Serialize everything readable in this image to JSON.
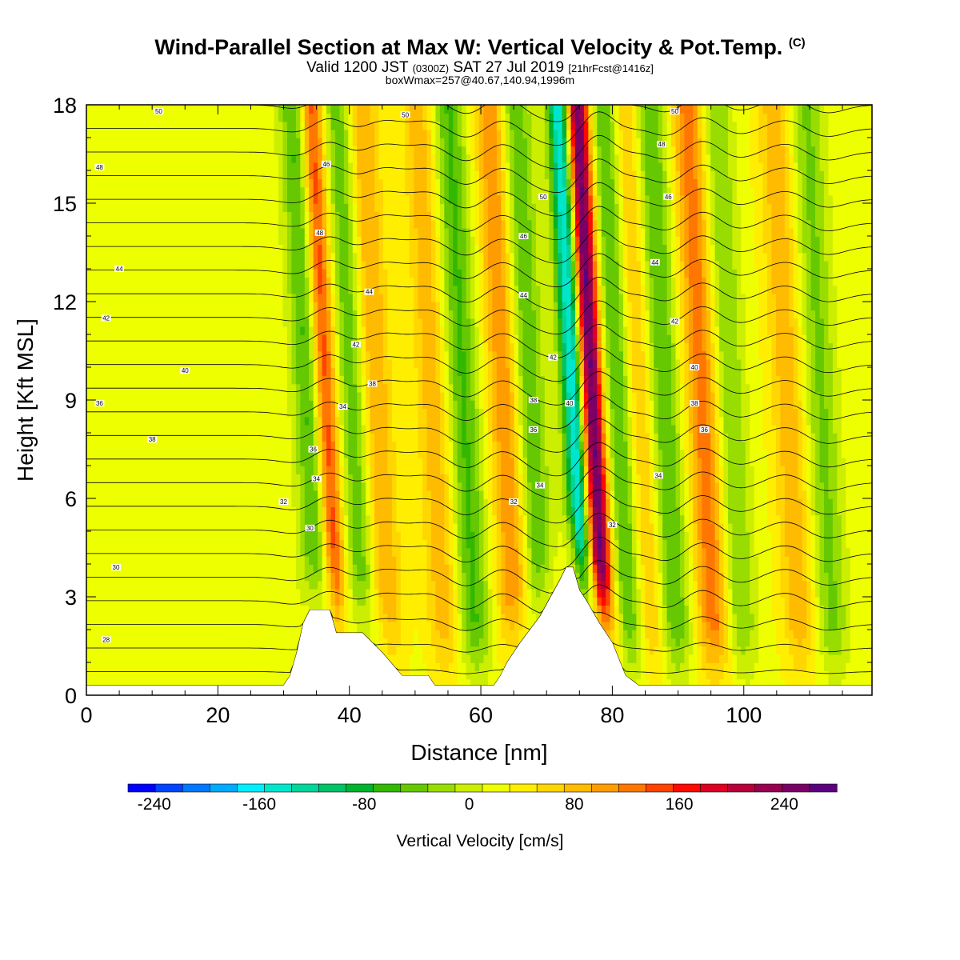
{
  "title": {
    "main": "Wind-Parallel Section at Max W: Vertical Velocity & Pot.Temp.",
    "main_suffix": "(C)",
    "valid_a": "Valid 1200 JST",
    "valid_b": "(0300Z)",
    "valid_c": "SAT 27 Jul 2019",
    "valid_d": "[21hrFcst@1416z]",
    "box": "boxWmax=257@40.67,140.94,1996m"
  },
  "chart_data": {
    "type": "heatmap",
    "xlabel": "Distance [nm]",
    "ylabel": "Height [Kft MSL]",
    "xlim": [
      0,
      119.5
    ],
    "ylim": [
      0,
      18
    ],
    "xticks": [
      0,
      20,
      40,
      60,
      80,
      100
    ],
    "yticks": [
      0,
      3,
      6,
      9,
      12,
      15,
      18
    ],
    "colorbar": {
      "label": "Vertical Velocity [cm/s]",
      "min": -260,
      "max": 280,
      "step": 20,
      "tick_values": [
        -240,
        -160,
        -80,
        0,
        80,
        160,
        240
      ],
      "colors": [
        "#0000ff",
        "#0044ff",
        "#0077ff",
        "#00aaff",
        "#00eeff",
        "#00e6cc",
        "#00d699",
        "#00c266",
        "#00b22e",
        "#33b800",
        "#66c800",
        "#99dd00",
        "#ccee00",
        "#eeff00",
        "#ffee00",
        "#ffd600",
        "#ffbb00",
        "#ff9c00",
        "#ff7700",
        "#ff4400",
        "#ff0a00",
        "#dd0022",
        "#b8003c",
        "#990050",
        "#7a0066",
        "#5c0080"
      ]
    },
    "terrain_kft": [
      [
        0,
        0.3
      ],
      [
        30,
        0.3
      ],
      [
        31,
        0.6
      ],
      [
        32,
        1.3
      ],
      [
        33,
        2.2
      ],
      [
        34,
        2.6
      ],
      [
        37,
        2.6
      ],
      [
        38,
        1.9
      ],
      [
        42,
        1.9
      ],
      [
        45,
        1.3
      ],
      [
        48,
        0.6
      ],
      [
        52,
        0.6
      ],
      [
        53,
        0.3
      ],
      [
        62,
        0.3
      ],
      [
        63,
        0.6
      ],
      [
        64,
        1.0
      ],
      [
        66,
        1.6
      ],
      [
        69,
        2.4
      ],
      [
        72,
        3.5
      ],
      [
        73,
        3.9
      ],
      [
        74,
        3.9
      ],
      [
        75,
        3.2
      ],
      [
        76,
        2.9
      ],
      [
        78,
        2.2
      ],
      [
        80,
        1.6
      ],
      [
        82,
        0.6
      ],
      [
        84,
        0.3
      ],
      [
        119.5,
        0.3
      ]
    ],
    "w_features": [
      {
        "x": 36.5,
        "value": 160
      },
      {
        "x": 34.5,
        "value": -100
      },
      {
        "x": 44.0,
        "value": 80
      },
      {
        "x": 41.0,
        "value": -80
      },
      {
        "x": 53.0,
        "value": 60
      },
      {
        "x": 57.5,
        "value": -80
      },
      {
        "x": 64.0,
        "value": 90
      },
      {
        "x": 67.5,
        "value": -80
      },
      {
        "x": 77.0,
        "value": 257
      },
      {
        "x": 74.5,
        "value": -200
      },
      {
        "x": 81.5,
        "value": -100
      },
      {
        "x": 84.0,
        "value": 80
      },
      {
        "x": 88.0,
        "value": -80
      },
      {
        "x": 94.0,
        "value": 100
      },
      {
        "x": 98.0,
        "value": -60
      },
      {
        "x": 107.0,
        "value": 60
      },
      {
        "x": 112.0,
        "value": -60
      }
    ],
    "theta_contour_labels": [
      {
        "x": 3,
        "y": 1.7,
        "value": 28
      },
      {
        "x": 4.5,
        "y": 3.9,
        "value": 30
      },
      {
        "x": 30,
        "y": 5.9,
        "value": 32
      },
      {
        "x": 34,
        "y": 5.1,
        "value": 30
      },
      {
        "x": 2,
        "y": 8.9,
        "value": 36
      },
      {
        "x": 10,
        "y": 7.8,
        "value": 38
      },
      {
        "x": 15,
        "y": 9.9,
        "value": 40
      },
      {
        "x": 3,
        "y": 11.5,
        "value": 42
      },
      {
        "x": 5,
        "y": 13.0,
        "value": 44
      },
      {
        "x": 2,
        "y": 16.1,
        "value": 48
      },
      {
        "x": 11,
        "y": 17.8,
        "value": 50
      },
      {
        "x": 48.5,
        "y": 17.7,
        "value": 50
      },
      {
        "x": 69.5,
        "y": 15.2,
        "value": 50
      },
      {
        "x": 66.5,
        "y": 14.0,
        "value": 46
      },
      {
        "x": 66.5,
        "y": 12.2,
        "value": 44
      },
      {
        "x": 71,
        "y": 10.3,
        "value": 42
      },
      {
        "x": 43,
        "y": 12.3,
        "value": 44
      },
      {
        "x": 41,
        "y": 10.7,
        "value": 42
      },
      {
        "x": 43.5,
        "y": 9.5,
        "value": 38
      },
      {
        "x": 39,
        "y": 8.8,
        "value": 34
      },
      {
        "x": 36.5,
        "y": 16.2,
        "value": 46
      },
      {
        "x": 35.5,
        "y": 14.1,
        "value": 48
      },
      {
        "x": 34.5,
        "y": 7.5,
        "value": 36
      },
      {
        "x": 35,
        "y": 6.6,
        "value": 34
      },
      {
        "x": 68,
        "y": 8.1,
        "value": 36
      },
      {
        "x": 68,
        "y": 9.0,
        "value": 38
      },
      {
        "x": 69,
        "y": 6.4,
        "value": 34
      },
      {
        "x": 65,
        "y": 5.9,
        "value": 32
      },
      {
        "x": 73.5,
        "y": 8.9,
        "value": 40
      },
      {
        "x": 80,
        "y": 5.2,
        "value": 32
      },
      {
        "x": 87,
        "y": 6.7,
        "value": 34
      },
      {
        "x": 94,
        "y": 8.1,
        "value": 36
      },
      {
        "x": 92.5,
        "y": 8.9,
        "value": 38
      },
      {
        "x": 92.5,
        "y": 10.0,
        "value": 40
      },
      {
        "x": 89.5,
        "y": 11.4,
        "value": 42
      },
      {
        "x": 86.5,
        "y": 13.2,
        "value": 44
      },
      {
        "x": 88.5,
        "y": 15.2,
        "value": 46
      },
      {
        "x": 87.5,
        "y": 16.8,
        "value": 48
      },
      {
        "x": 89.5,
        "y": 17.8,
        "value": 50
      }
    ]
  }
}
